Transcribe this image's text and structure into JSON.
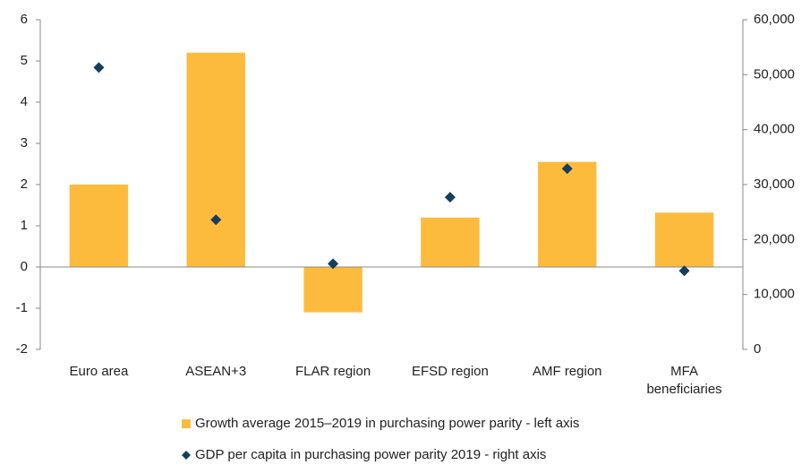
{
  "chart_data": {
    "type": "bar",
    "categories": [
      "Euro area",
      "ASEAN+3",
      "FLAR region",
      "EFSD region",
      "AMF region",
      "MFA beneficiaries"
    ],
    "series": [
      {
        "name": "Growth average 2015–2019 in purchasing power parity - left axis",
        "type": "bar",
        "color": "#fdbb3e",
        "values": [
          2.0,
          5.2,
          -1.1,
          1.2,
          2.55,
          1.32
        ]
      },
      {
        "name": "GDP per capita in purchasing power parity 2019 - right axis",
        "type": "scatter",
        "axis": "y2",
        "color": "#153e5c",
        "values": [
          51300,
          23600,
          15600,
          27700,
          32900,
          14300
        ]
      }
    ],
    "ylim": [
      -2,
      6
    ],
    "yticks": [
      -2,
      -1,
      0,
      1,
      2,
      3,
      4,
      5,
      6
    ],
    "y2lim": [
      0,
      60000
    ],
    "y2ticks": [
      0,
      {
        "value": 10000,
        "label": "10,000"
      },
      {
        "value": 20000,
        "label": "20,000"
      },
      {
        "value": 30000,
        "label": "30,000"
      },
      {
        "value": 40000,
        "label": "40,000"
      },
      {
        "value": 50000,
        "label": "50,000"
      },
      {
        "value": 60000,
        "label": "60,000"
      }
    ],
    "grid": false,
    "legend": "bottom"
  }
}
